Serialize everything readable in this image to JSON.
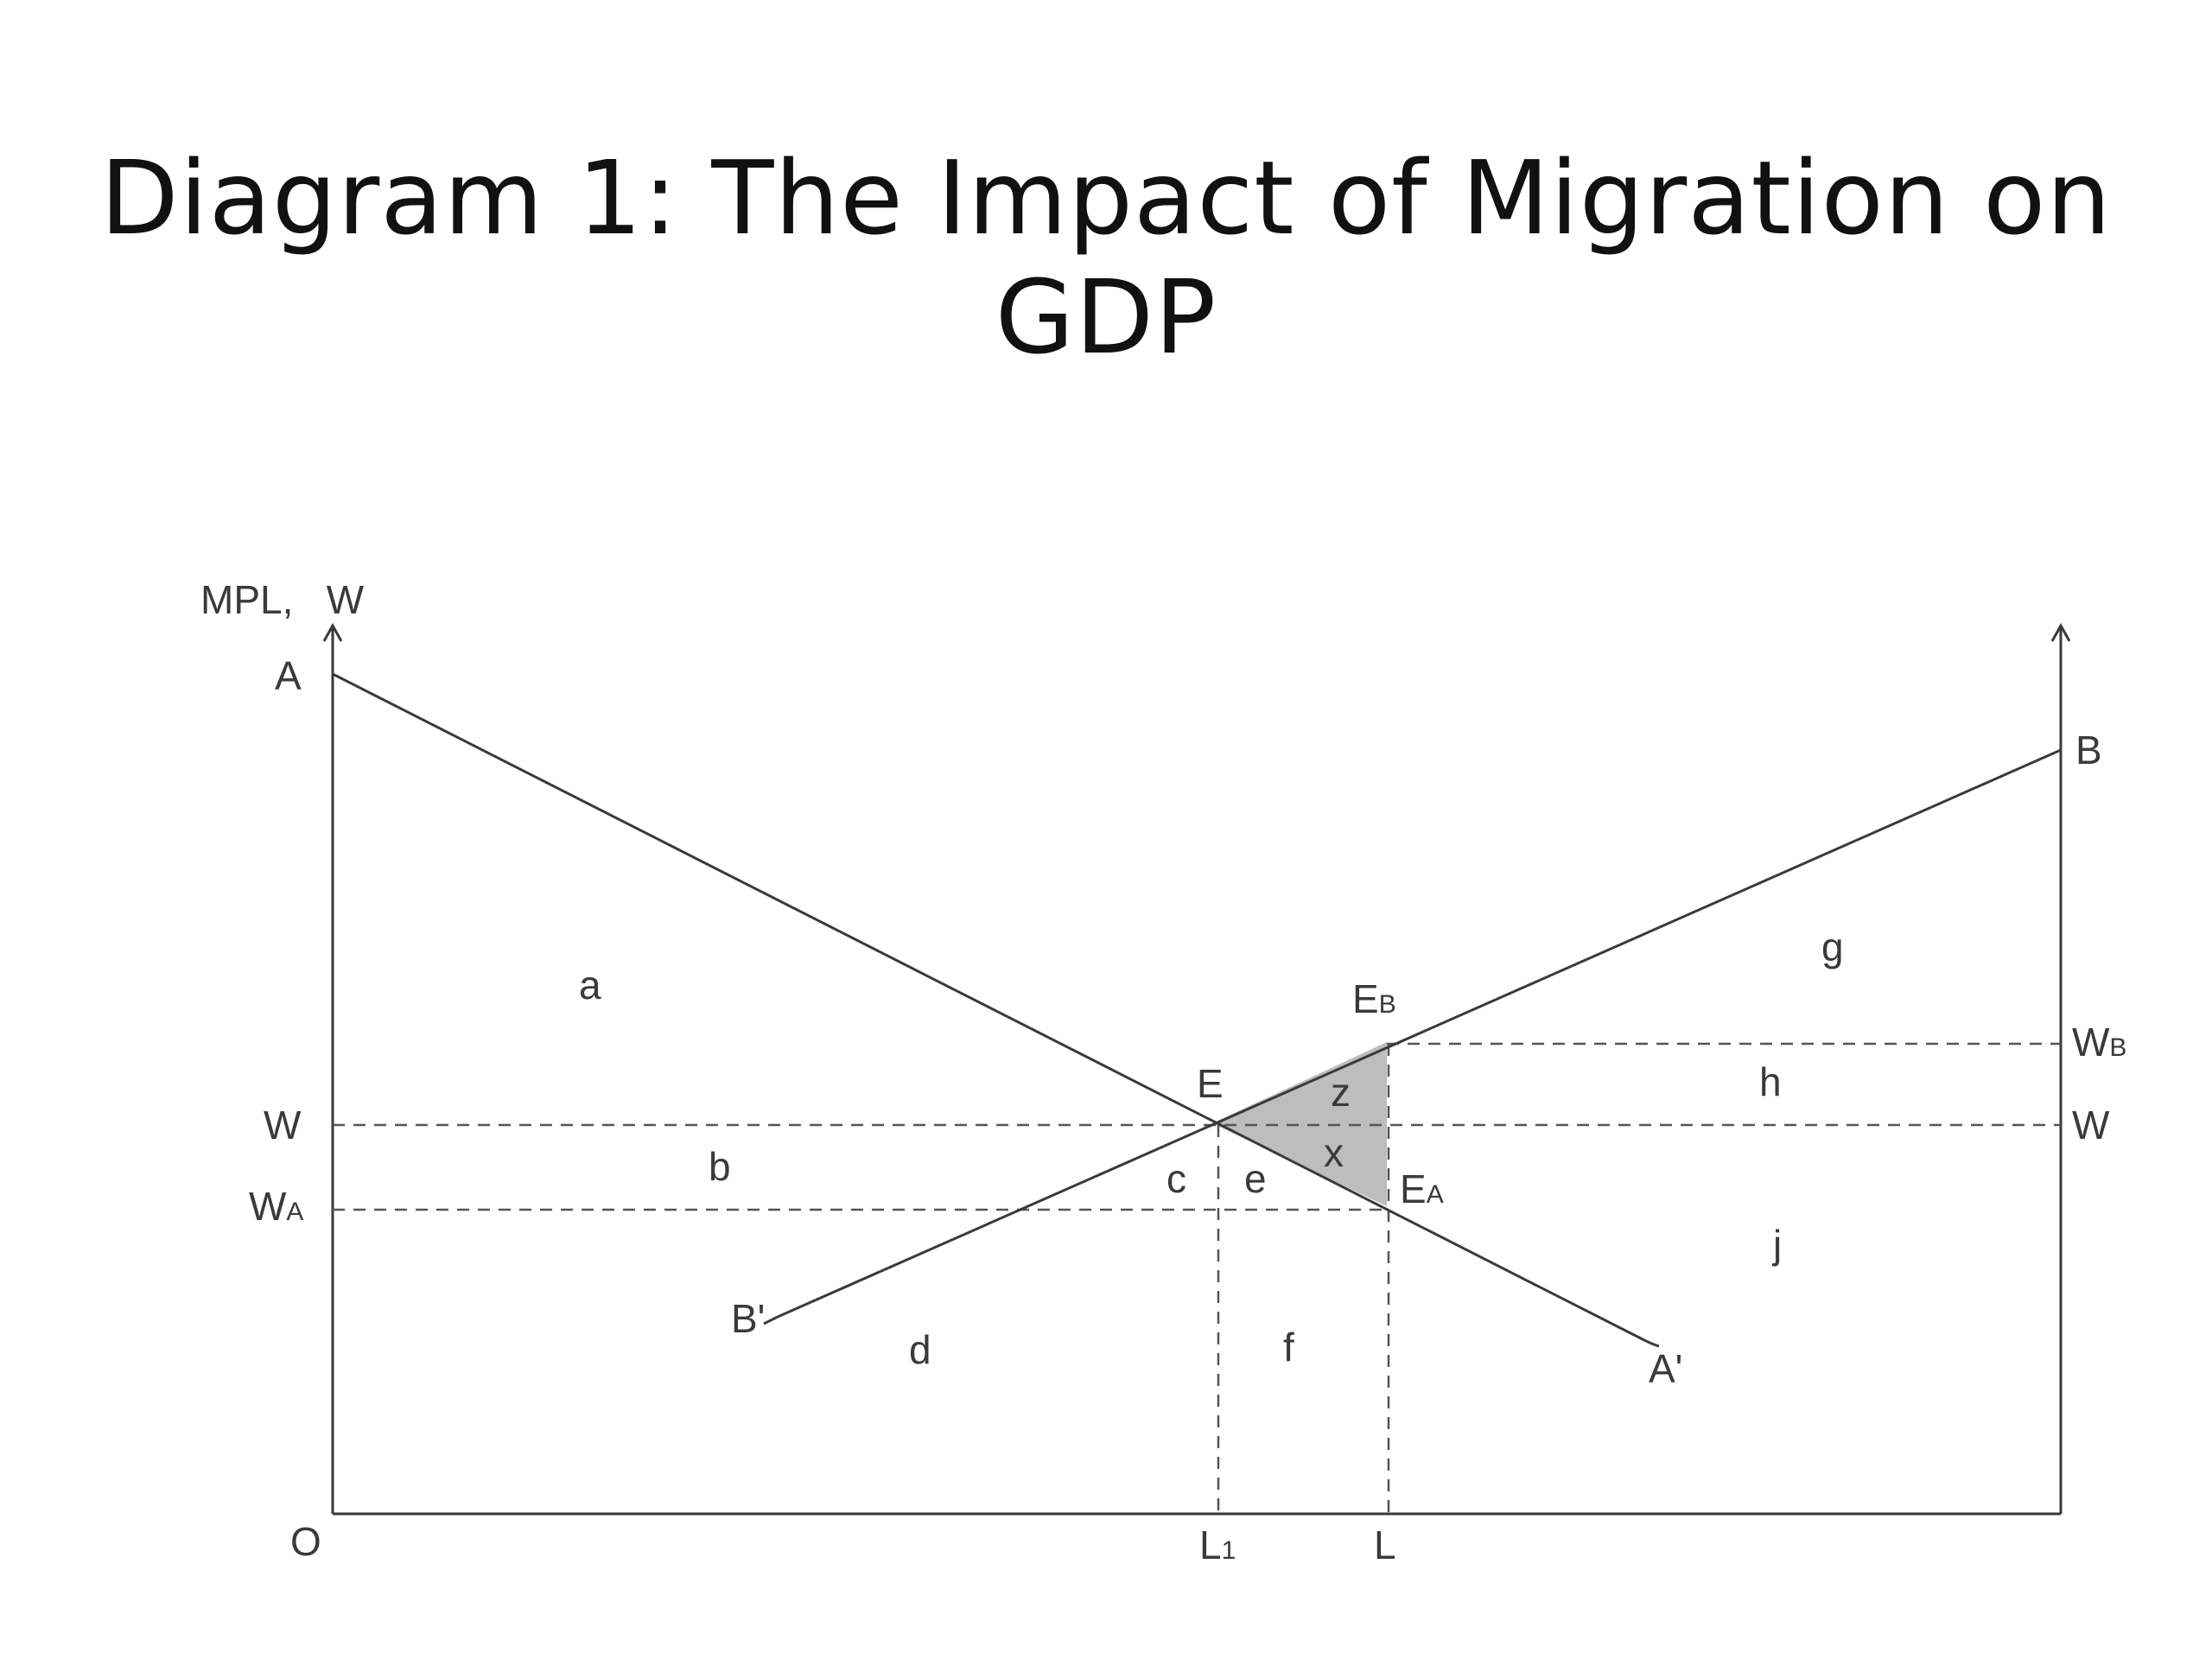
{
  "title": "Diagram 1: The Impact of Migration on GDP",
  "axes": {
    "y_label": "MPL,   W",
    "origin": "O"
  },
  "points": {
    "A": "A",
    "B": "B",
    "A_prime": "A'",
    "B_prime": "B'",
    "E": "E",
    "E_B": {
      "main": "E",
      "sub": "B"
    },
    "E_A": {
      "main": "E",
      "sub": "A"
    }
  },
  "wage_labels": {
    "W_left": "W",
    "W_right": "W",
    "W_A": {
      "main": "W",
      "sub": "A"
    },
    "W_B": {
      "main": "W",
      "sub": "B"
    }
  },
  "labor_labels": {
    "L1": {
      "main": "L",
      "sub": "1"
    },
    "L": "L"
  },
  "regions": {
    "a": "a",
    "b": "b",
    "c": "c",
    "d": "d",
    "e": "e",
    "f": "f",
    "g": "g",
    "h": "h",
    "j": "j",
    "x": "x",
    "z": "z"
  },
  "colors": {
    "line": "#3a3a3a",
    "shade": "#bdbdbd",
    "text": "#3a3a3a"
  }
}
